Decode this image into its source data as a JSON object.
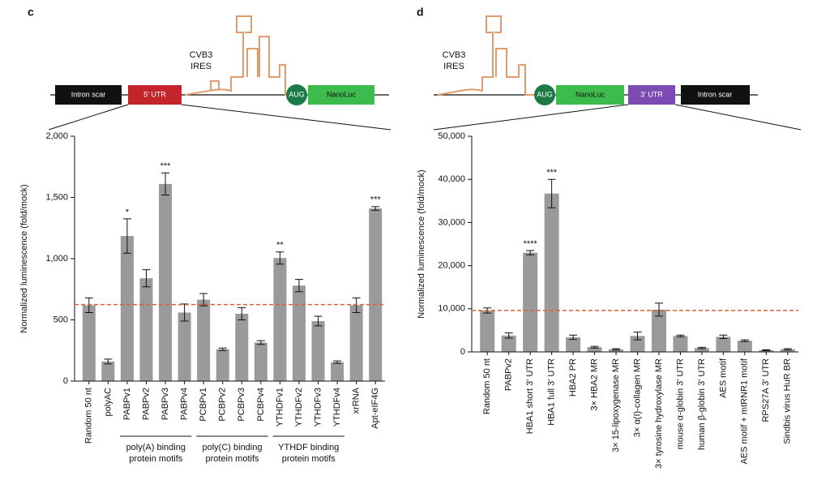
{
  "panels": [
    {
      "letter": "c",
      "construct": {
        "intron": "Intron scar",
        "utr": "5' UTR",
        "ires": [
          "CVB3",
          "IRES"
        ],
        "start": "AUG",
        "reporter": "NanoLuc"
      }
    },
    {
      "letter": "d",
      "construct": {
        "intron": "Intron scar",
        "utr": "3' UTR",
        "ires": [
          "CVB3",
          "IRES"
        ],
        "start": "AUG",
        "reporter": "NanoLuc"
      }
    }
  ],
  "chart_data": [
    {
      "type": "bar",
      "ylabel": "Normalized luminescence (fold/mock)",
      "color": "#9a9a9a",
      "categories": [
        "Random 50 nt",
        "polyAC",
        "PABPv1",
        "PABPv2",
        "PABPv3",
        "PABPv4",
        "PCBPv1",
        "PCBPv2",
        "PCBPv3",
        "PCBPv4",
        "YTHDFv1",
        "YTHDFv2",
        "YTHDFv3",
        "YTHDFv4",
        "xrRNA",
        "Apt-eIF4G"
      ],
      "values": [
        620,
        160,
        1185,
        840,
        1610,
        560,
        665,
        260,
        550,
        315,
        1005,
        780,
        490,
        155,
        620,
        1410
      ],
      "errors": [
        60,
        20,
        140,
        70,
        90,
        70,
        50,
        10,
        50,
        15,
        50,
        50,
        40,
        10,
        60,
        15
      ],
      "annotations": [
        null,
        null,
        "*",
        null,
        "***",
        null,
        null,
        null,
        null,
        null,
        "**",
        null,
        null,
        null,
        null,
        "***"
      ],
      "reference_line": 625,
      "reference_color": "#d9603b",
      "ylim": [
        0,
        2000
      ],
      "yticks": [
        0,
        500,
        {
          "value": 1000,
          "label": "1,000"
        },
        {
          "value": 1500,
          "label": "1,500"
        },
        {
          "value": 2000,
          "label": "2,000"
        }
      ],
      "groups": [
        {
          "label": [
            "poly(A) binding",
            "protein motifs"
          ],
          "from": 2,
          "to": 5
        },
        {
          "label": [
            "poly(C) binding",
            "protein motifs"
          ],
          "from": 6,
          "to": 9
        },
        {
          "label": [
            "YTHDF binding",
            "protein motifs"
          ],
          "from": 10,
          "to": 13
        }
      ]
    },
    {
      "type": "bar",
      "ylabel": "Normalized luminescence (fold/mock)",
      "color": "#9a9a9a",
      "categories": [
        "Random 50 nt",
        "PABPv2",
        "HBA1 short 3' UTR",
        "HBA1 full 3' UTR",
        "HBA2 PR",
        "3× HBA2 MR",
        "3× 15-lipoxygenase MR",
        "3× α(I)-collagen MR",
        "3× tyrosine hydroxylase MR",
        "mouse α-globin 3' UTR",
        "human β-globin 3' UTR",
        "AES motif",
        "AES motif + mtRNR1 motif",
        "RPS27A 3' UTR",
        "Sindbis virus HuR BR"
      ],
      "values": [
        9600,
        3800,
        23000,
        36700,
        3400,
        1100,
        600,
        3700,
        9800,
        3700,
        900,
        3500,
        2600,
        400,
        600
      ],
      "errors": [
        600,
        600,
        500,
        3300,
        500,
        200,
        150,
        900,
        1500,
        200,
        150,
        400,
        200,
        100,
        150
      ],
      "annotations": [
        null,
        null,
        "****",
        "***",
        null,
        null,
        null,
        null,
        null,
        null,
        null,
        null,
        null,
        null,
        null
      ],
      "reference_line": 9600,
      "reference_color": "#d9603b",
      "ylim": [
        0,
        50000
      ],
      "yticks": [
        0,
        {
          "value": 10000,
          "label": "10,000"
        },
        {
          "value": 20000,
          "label": "20,000"
        },
        {
          "value": 30000,
          "label": "30,000"
        },
        {
          "value": 40000,
          "label": "40,000"
        },
        {
          "value": 50000,
          "label": "50,000"
        }
      ]
    }
  ]
}
